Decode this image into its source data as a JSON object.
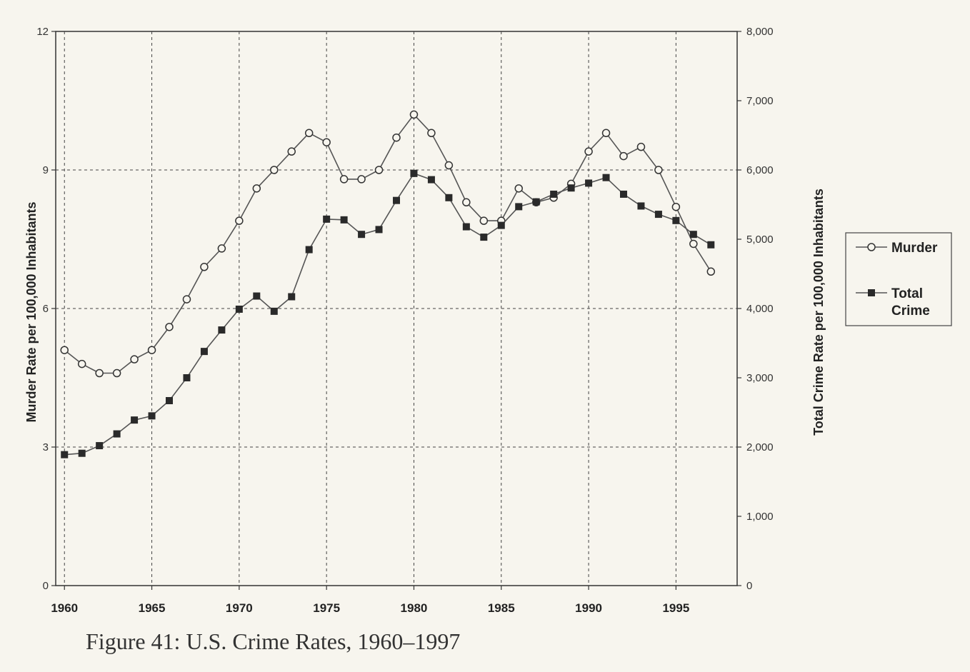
{
  "caption": "Figure 41: U.S. Crime Rates, 1960–1997",
  "chart_data": {
    "type": "line",
    "x": [
      1960,
      1961,
      1962,
      1963,
      1964,
      1965,
      1966,
      1967,
      1968,
      1969,
      1970,
      1971,
      1972,
      1973,
      1974,
      1975,
      1976,
      1977,
      1978,
      1979,
      1980,
      1981,
      1982,
      1983,
      1984,
      1985,
      1986,
      1987,
      1988,
      1989,
      1990,
      1991,
      1992,
      1993,
      1994,
      1995,
      1996,
      1997
    ],
    "xticks": [
      1960,
      1965,
      1970,
      1975,
      1980,
      1985,
      1990,
      1995
    ],
    "xlim": [
      1959.5,
      1998.5
    ],
    "ylabel_left": "Murder Rate per 100,000 Inhabitants",
    "ylabel_right": "Total Crime Rate per 100,000 Inhabitants",
    "ylim_left": [
      0,
      12
    ],
    "ylim_right": [
      0,
      8000
    ],
    "yticks_left": [
      0,
      3,
      6,
      9,
      12
    ],
    "yticks_right": [
      "0",
      "1,000",
      "2,000",
      "3,000",
      "4,000",
      "5,000",
      "6,000",
      "7,000",
      "8,000"
    ],
    "grid": "dashed",
    "legend_position": "right",
    "series": [
      {
        "name": "Murder",
        "axis": "left",
        "marker": "open-circle",
        "values": [
          5.1,
          4.8,
          4.6,
          4.6,
          4.9,
          5.1,
          5.6,
          6.2,
          6.9,
          7.3,
          7.9,
          8.6,
          9.0,
          9.4,
          9.8,
          9.6,
          8.8,
          8.8,
          9.0,
          9.7,
          10.2,
          9.8,
          9.1,
          8.3,
          7.9,
          7.9,
          8.6,
          8.3,
          8.4,
          8.7,
          9.4,
          9.8,
          9.3,
          9.5,
          9.0,
          8.2,
          7.4,
          6.8
        ]
      },
      {
        "name": "Total Crime",
        "axis": "right",
        "marker": "filled-square",
        "values": [
          1890,
          1910,
          2020,
          2190,
          2390,
          2450,
          2670,
          3000,
          3380,
          3690,
          3990,
          4180,
          3960,
          4170,
          4850,
          5290,
          5280,
          5070,
          5140,
          5560,
          5950,
          5860,
          5600,
          5180,
          5030,
          5200,
          5470,
          5540,
          5650,
          5740,
          5810,
          5890,
          5650,
          5480,
          5360,
          5270,
          5070,
          4920
        ]
      }
    ],
    "legend_labels": {
      "murder": "Murder",
      "crime_line1": "Total",
      "crime_line2": "Crime"
    },
    "colors": {
      "line": "#555555",
      "marker": "#2a2a2a",
      "grid": "#444444",
      "background": "#f7f5ee"
    }
  }
}
